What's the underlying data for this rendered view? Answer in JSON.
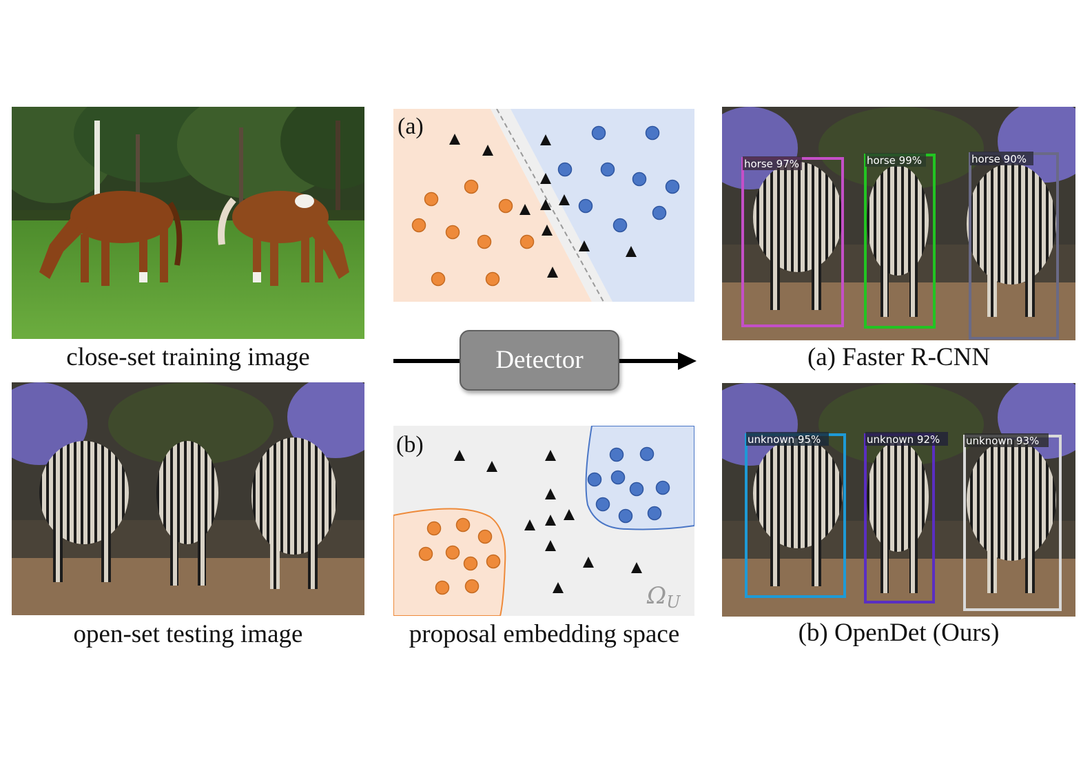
{
  "captions": {
    "train": "close-set training image",
    "test": "open-set testing image",
    "space": "proposal embedding space",
    "faster": "(a) Faster R-CNN",
    "opendet": "(b) OpenDet (Ours)"
  },
  "detector": {
    "label": "Detector"
  },
  "panels": {
    "a_letter": "(a)",
    "b_letter": "(b)",
    "omega": "Ω",
    "omega_sub": "U"
  },
  "detections_a": [
    {
      "label": "horse 97%",
      "color": "#c44fc7"
    },
    {
      "label": "horse 99%",
      "color": "#22c422"
    },
    {
      "label": "horse 90%",
      "color": "#55557a"
    }
  ],
  "detections_b": [
    {
      "label": "unknown 95%",
      "color": "#1e9ad6"
    },
    {
      "label": "unknown 92%",
      "color": "#5a2ec2"
    },
    {
      "label": "unknown 93%",
      "color": "#d9d9d9"
    }
  ],
  "colors": {
    "orange_region": "#fbe3d2",
    "blue_region": "#d9e3f5",
    "gray_region": "#efefef",
    "orange_dot": "#ee8a3a",
    "blue_dot": "#4a76c6",
    "detector_box": "#8c8c8c"
  }
}
